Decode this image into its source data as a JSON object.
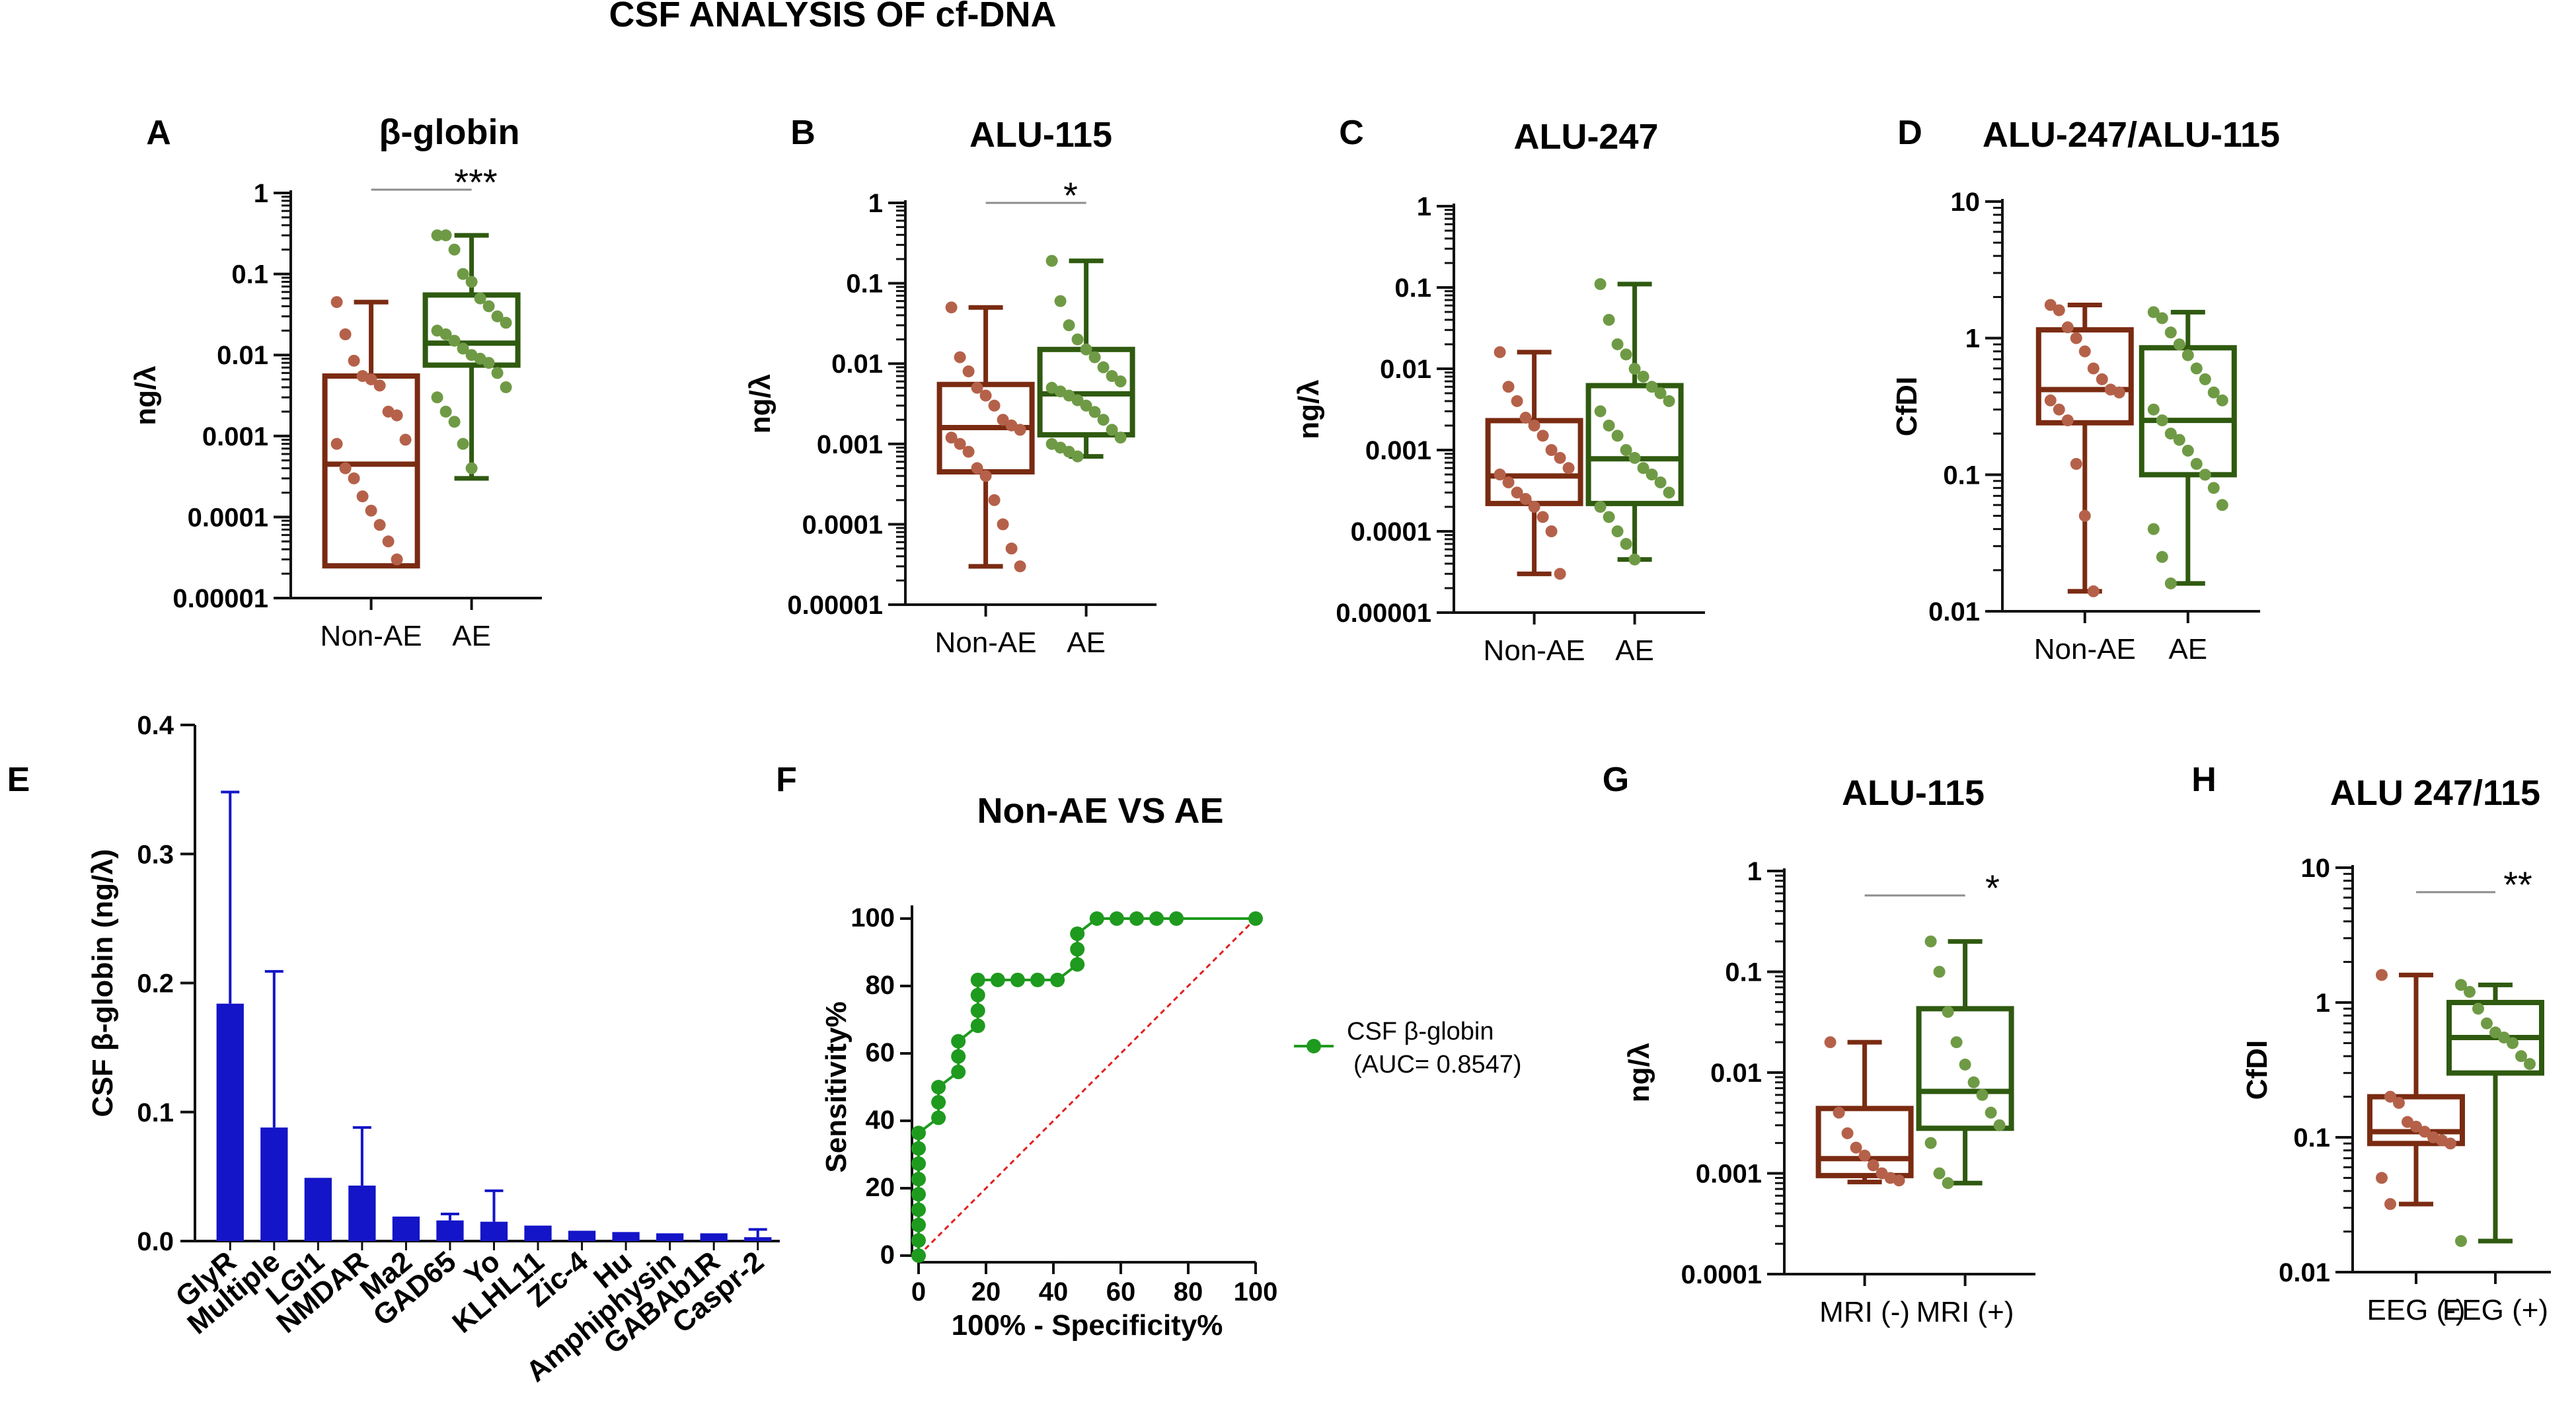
{
  "figure": {
    "title": "CSF ANALYSIS OF cf-DNA"
  },
  "colors": {
    "red": "#7a2b12",
    "redDot": "#b5614a",
    "green": "#2f5a10",
    "greenDot": "#6f9a45",
    "blue": "#1414c8",
    "roc": "#1e9a1e",
    "diag": "#e02020",
    "sigline": "#8c8c8c"
  },
  "chart_data": [
    {
      "id": "A",
      "type": "box",
      "panel_label": "A",
      "title": "β-globin",
      "ylabel": "ng/λ",
      "yscale": "log",
      "ylim": [
        1e-05,
        1
      ],
      "yticks": [
        {
          "v": 1,
          "t": "1"
        },
        {
          "v": 0.1,
          "t": "0.1"
        },
        {
          "v": 0.01,
          "t": "0.01"
        },
        {
          "v": 0.001,
          "t": "0.001"
        },
        {
          "v": 0.0001,
          "t": "0.0001"
        },
        {
          "v": 1e-05,
          "t": "0.00001"
        }
      ],
      "groups": [
        {
          "name": "Non-AE",
          "color": "red",
          "min": 2.5e-05,
          "q1": 2.5e-05,
          "median": 0.00045,
          "q3": 0.0055,
          "max": 0.045,
          "points": [
            0.045,
            0.018,
            0.0085,
            0.0055,
            0.005,
            0.0042,
            0.002,
            0.0018,
            0.0009,
            0.0008,
            0.0004,
            0.0003,
            0.00018,
            0.00012,
            8e-05,
            5e-05,
            3e-05
          ]
        },
        {
          "name": "AE",
          "color": "green",
          "min": 0.0003,
          "q1": 0.0075,
          "median": 0.014,
          "q3": 0.055,
          "max": 0.3,
          "points": [
            0.3,
            0.3,
            0.2,
            0.1,
            0.08,
            0.05,
            0.04,
            0.03,
            0.025,
            0.02,
            0.018,
            0.015,
            0.012,
            0.01,
            0.009,
            0.008,
            0.006,
            0.004,
            0.003,
            0.002,
            0.0015,
            0.0008,
            0.0004
          ]
        }
      ],
      "significance": "***"
    },
    {
      "id": "B",
      "type": "box",
      "panel_label": "B",
      "title": "ALU-115",
      "ylabel": "ng/λ",
      "yscale": "log",
      "ylim": [
        1e-05,
        1
      ],
      "yticks": [
        {
          "v": 1,
          "t": "1"
        },
        {
          "v": 0.1,
          "t": "0.1"
        },
        {
          "v": 0.01,
          "t": "0.01"
        },
        {
          "v": 0.001,
          "t": "0.001"
        },
        {
          "v": 0.0001,
          "t": "0.0001"
        },
        {
          "v": 1e-05,
          "t": "0.00001"
        }
      ],
      "groups": [
        {
          "name": "Non-AE",
          "color": "red",
          "min": 3e-05,
          "q1": 0.00045,
          "median": 0.0016,
          "q3": 0.0055,
          "max": 0.05,
          "points": [
            0.05,
            0.012,
            0.008,
            0.005,
            0.004,
            0.003,
            0.002,
            0.0017,
            0.0015,
            0.0012,
            0.001,
            0.0008,
            0.0005,
            0.0004,
            0.0002,
            0.0001,
            5e-05,
            3e-05
          ]
        },
        {
          "name": "AE",
          "color": "green",
          "min": 0.0007,
          "q1": 0.0013,
          "median": 0.0042,
          "q3": 0.015,
          "max": 0.19,
          "points": [
            0.19,
            0.06,
            0.03,
            0.02,
            0.015,
            0.012,
            0.009,
            0.007,
            0.006,
            0.005,
            0.0045,
            0.004,
            0.0035,
            0.003,
            0.0025,
            0.002,
            0.0015,
            0.0012,
            0.001,
            0.0009,
            0.0008,
            0.0007
          ]
        }
      ],
      "significance": "*"
    },
    {
      "id": "C",
      "type": "box",
      "panel_label": "C",
      "title": "ALU-247",
      "ylabel": "ng/λ",
      "yscale": "log",
      "ylim": [
        1e-05,
        1
      ],
      "yticks": [
        {
          "v": 1,
          "t": "1"
        },
        {
          "v": 0.1,
          "t": "0.1"
        },
        {
          "v": 0.01,
          "t": "0.01"
        },
        {
          "v": 0.001,
          "t": "0.001"
        },
        {
          "v": 0.0001,
          "t": "0.0001"
        },
        {
          "v": 1e-05,
          "t": "0.00001"
        }
      ],
      "groups": [
        {
          "name": "Non-AE",
          "color": "red",
          "min": 3e-05,
          "q1": 0.00022,
          "median": 0.00048,
          "q3": 0.0023,
          "max": 0.016,
          "points": [
            0.016,
            0.006,
            0.004,
            0.0025,
            0.002,
            0.0015,
            0.001,
            0.0008,
            0.0006,
            0.0005,
            0.0004,
            0.0003,
            0.00025,
            0.0002,
            0.00015,
            0.0001,
            3e-05
          ]
        },
        {
          "name": "AE",
          "color": "green",
          "min": 4.5e-05,
          "q1": 0.00022,
          "median": 0.00078,
          "q3": 0.0062,
          "max": 0.11,
          "points": [
            0.11,
            0.04,
            0.02,
            0.015,
            0.01,
            0.008,
            0.006,
            0.005,
            0.004,
            0.003,
            0.002,
            0.0015,
            0.001,
            0.0008,
            0.0006,
            0.0005,
            0.0004,
            0.0003,
            0.0002,
            0.00015,
            0.0001,
            7e-05,
            4.5e-05
          ]
        }
      ],
      "significance": ""
    },
    {
      "id": "D",
      "type": "box",
      "panel_label": "D",
      "title": "ALU-247/ALU-115",
      "ylabel": "CfDI",
      "yscale": "log",
      "ylim": [
        0.01,
        10
      ],
      "yticks": [
        {
          "v": 10,
          "t": "10"
        },
        {
          "v": 1,
          "t": "1"
        },
        {
          "v": 0.1,
          "t": "0.1"
        },
        {
          "v": 0.01,
          "t": "0.01"
        }
      ],
      "groups": [
        {
          "name": "Non-AE",
          "color": "red",
          "min": 0.014,
          "q1": 0.24,
          "median": 0.42,
          "q3": 1.15,
          "max": 1.75,
          "points": [
            1.75,
            1.6,
            1.2,
            1.0,
            0.8,
            0.6,
            0.5,
            0.42,
            0.4,
            0.35,
            0.3,
            0.25,
            0.12,
            0.05,
            0.014
          ]
        },
        {
          "name": "AE",
          "color": "green",
          "min": 0.016,
          "q1": 0.1,
          "median": 0.25,
          "q3": 0.85,
          "max": 1.55,
          "points": [
            1.55,
            1.4,
            1.1,
            0.9,
            0.75,
            0.6,
            0.5,
            0.4,
            0.35,
            0.3,
            0.25,
            0.2,
            0.18,
            0.15,
            0.12,
            0.1,
            0.08,
            0.06,
            0.04,
            0.025,
            0.016
          ]
        }
      ],
      "significance": ""
    },
    {
      "id": "E",
      "type": "bar",
      "panel_label": "E",
      "title": "",
      "xlabel": "",
      "ylabel": "CSF β-globin (ng/λ)",
      "ylim": [
        0,
        0.4
      ],
      "yticks": [
        "0.0",
        "0.1",
        "0.2",
        "0.3",
        "0.4"
      ],
      "categories": [
        "GlyR",
        "Multiple",
        "LGI1",
        "NMDAR",
        "Ma2",
        "GAD65",
        "Yo",
        "KLHL11",
        "Zic-4",
        "Hu",
        "Amphiphysin",
        "GABAb1R",
        "Caspr-2"
      ],
      "values": [
        0.184,
        0.088,
        0.049,
        0.043,
        0.019,
        0.016,
        0.015,
        0.012,
        0.008,
        0.007,
        0.006,
        0.006,
        0.003
      ],
      "errors": [
        0.164,
        0.121,
        0,
        0.045,
        0,
        0.005,
        0.024,
        0,
        0,
        0,
        0,
        0,
        0.006
      ]
    },
    {
      "id": "F",
      "type": "line",
      "panel_label": "F",
      "title": "Non-AE VS AE",
      "xlabel": "100% - Specificity%",
      "ylabel": "Sensitivity%",
      "xlim": [
        0,
        100
      ],
      "ylim": [
        0,
        100
      ],
      "xticks": [
        "0",
        "20",
        "40",
        "60",
        "80",
        "100"
      ],
      "yticks": [
        "0",
        "20",
        "40",
        "60",
        "80",
        "100"
      ],
      "series": [
        {
          "name": "CSF β-globin",
          "x": [
            0,
            0,
            0,
            0,
            0,
            0,
            0,
            0,
            0,
            5.9,
            5.9,
            5.9,
            11.8,
            11.8,
            11.8,
            17.6,
            17.6,
            17.6,
            17.6,
            23.5,
            29.4,
            35.3,
            41.2,
            47.1,
            47.1,
            47.1,
            52.9,
            58.8,
            64.7,
            70.6,
            76.5,
            100
          ],
          "y": [
            0,
            4.5,
            9.1,
            13.6,
            18.2,
            22.7,
            27.3,
            31.8,
            36.4,
            40.9,
            45.5,
            50,
            54.5,
            59.1,
            63.6,
            68.2,
            72.7,
            77.3,
            81.8,
            81.8,
            81.8,
            81.8,
            81.8,
            86.4,
            90.9,
            95.5,
            100,
            100,
            100,
            100,
            100,
            100
          ]
        }
      ],
      "legend": {
        "label": "CSF β-globin",
        "auc": "(AUC= 0.8547)"
      }
    },
    {
      "id": "G",
      "type": "box",
      "panel_label": "G",
      "title": "ALU-115",
      "ylabel": "ng/λ",
      "yscale": "log",
      "ylim": [
        0.0001,
        1
      ],
      "yticks": [
        {
          "v": 1,
          "t": "1"
        },
        {
          "v": 0.1,
          "t": "0.1"
        },
        {
          "v": 0.01,
          "t": "0.01"
        },
        {
          "v": 0.001,
          "t": "0.001"
        },
        {
          "v": 0.0001,
          "t": "0.0001"
        }
      ],
      "groups": [
        {
          "name": "MRI (-)",
          "color": "red",
          "min": 0.00082,
          "q1": 0.00095,
          "median": 0.0014,
          "q3": 0.0044,
          "max": 0.02,
          "points": [
            0.02,
            0.004,
            0.0025,
            0.0018,
            0.0015,
            0.0012,
            0.001,
            0.0009,
            0.00085
          ]
        },
        {
          "name": "MRI (+)",
          "color": "green",
          "min": 0.0008,
          "q1": 0.0028,
          "median": 0.0065,
          "q3": 0.043,
          "max": 0.2,
          "points": [
            0.2,
            0.1,
            0.04,
            0.02,
            0.012,
            0.008,
            0.006,
            0.004,
            0.003,
            0.002,
            0.001,
            0.0008
          ]
        }
      ],
      "significance": "*"
    },
    {
      "id": "H",
      "type": "box",
      "panel_label": "H",
      "title": "ALU 247/115",
      "ylabel": "CfDI",
      "yscale": "log",
      "ylim": [
        0.01,
        10
      ],
      "yticks": [
        {
          "v": 10,
          "t": "10"
        },
        {
          "v": 1,
          "t": "1"
        },
        {
          "v": 0.1,
          "t": "0.1"
        },
        {
          "v": 0.01,
          "t": "0.01"
        }
      ],
      "groups": [
        {
          "name": "EEG (-)",
          "color": "red",
          "min": 0.032,
          "q1": 0.09,
          "median": 0.11,
          "q3": 0.2,
          "max": 1.6,
          "points": [
            1.6,
            0.2,
            0.18,
            0.13,
            0.12,
            0.11,
            0.1,
            0.095,
            0.09,
            0.05,
            0.032
          ]
        },
        {
          "name": "EEG (+)",
          "color": "green",
          "min": 0.017,
          "q1": 0.3,
          "median": 0.55,
          "q3": 1.0,
          "max": 1.35,
          "points": [
            1.35,
            1.2,
            0.9,
            0.7,
            0.6,
            0.55,
            0.5,
            0.4,
            0.35,
            0.017
          ]
        }
      ],
      "significance": "**"
    }
  ]
}
